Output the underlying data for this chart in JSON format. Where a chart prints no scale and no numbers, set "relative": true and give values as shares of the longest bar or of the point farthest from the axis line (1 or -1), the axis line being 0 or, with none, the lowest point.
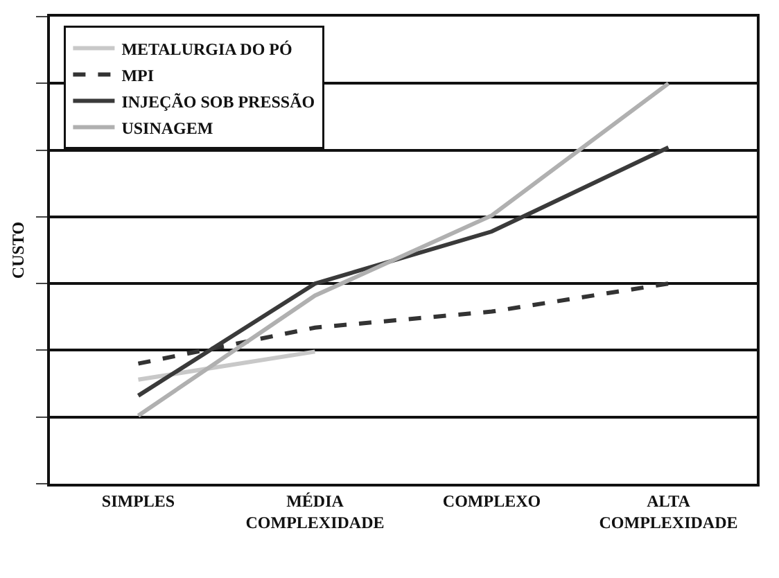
{
  "chart_data": {
    "type": "line",
    "relative": true,
    "ylabel": "CUSTO",
    "grid": "y",
    "legend": "top left",
    "marker": "none",
    "categories": [
      "SIMPLES",
      "MÉDIA COMPLEXIDADE",
      "COMPLEXO",
      "ALTA COMPLEXIDADE"
    ],
    "series": [
      {
        "name": "METALURGIA DO PÓ",
        "color": "#c8c8c8",
        "line_style": "solid",
        "values": [
          0.26,
          0.33,
          null,
          null
        ]
      },
      {
        "name": "MPI",
        "color": "#333333",
        "line_style": "dashed",
        "values": [
          0.3,
          0.39,
          0.43,
          0.5
        ]
      },
      {
        "name": "INJEÇÃO SOB PRESSÃO",
        "color": "#3a3a3a",
        "line_style": "solid",
        "values": [
          0.22,
          0.5,
          0.63,
          0.84
        ]
      },
      {
        "name": "USINAGEM",
        "color": "#b0b0b0",
        "line_style": "solid",
        "values": [
          0.17,
          0.47,
          0.67,
          1
        ]
      }
    ]
  }
}
